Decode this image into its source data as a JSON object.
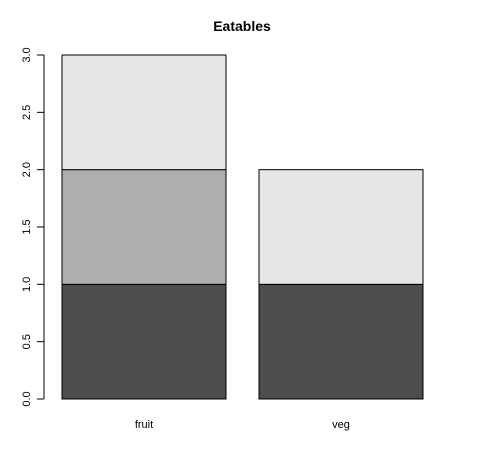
{
  "chart_data": {
    "type": "bar",
    "stacked": true,
    "title": "Eatables",
    "xlabel": "",
    "ylabel": "",
    "categories": [
      "fruit",
      "veg"
    ],
    "series": [
      {
        "color": "#4d4d4d",
        "values": [
          1,
          1
        ]
      },
      {
        "color": "#aeaeae",
        "values": [
          1,
          0
        ]
      },
      {
        "color": "#e6e6e6",
        "values": [
          1,
          1
        ]
      }
    ],
    "ylim": [
      0,
      3
    ],
    "yticks": [
      "0.0",
      "0.5",
      "1.0",
      "1.5",
      "2.0",
      "2.5",
      "3.0"
    ],
    "grid": false,
    "legend": "none"
  }
}
